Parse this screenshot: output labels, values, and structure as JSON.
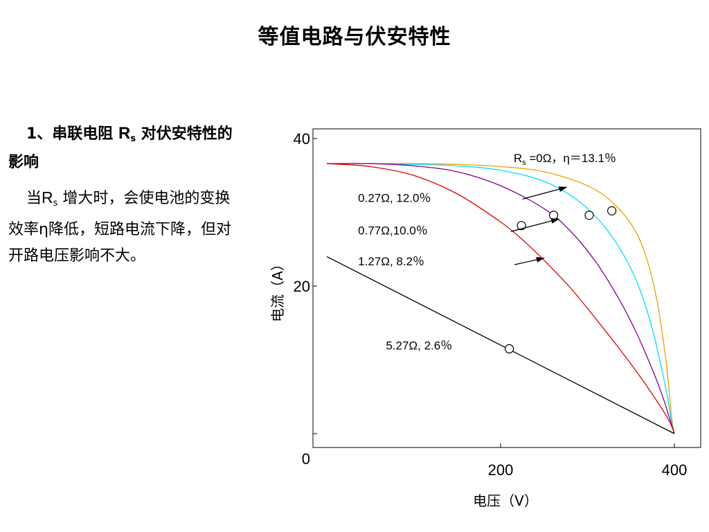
{
  "page": {
    "title": "等值电路与伏安特性"
  },
  "section": {
    "heading_prefix": "1、串联电阻",
    "heading_symbol": "R",
    "heading_sub": "s",
    "heading_suffix": "对伏安特性的影响",
    "body_prefix": "当",
    "body_symbol": "R",
    "body_sub": "s",
    "body_suffix": " 增大时，会使电池的变换效率η降低，短路电流下降，但对开路电压影响不大。"
  },
  "chart_data": {
    "type": "line",
    "xlabel": "电压（V）",
    "ylabel": "电流（A）",
    "xlim": [
      0,
      400
    ],
    "ylim": [
      0,
      40
    ],
    "x_ticks": [
      "200",
      "400"
    ],
    "y_ticks": [
      "0",
      "20",
      "40"
    ],
    "grid": false,
    "series": [
      {
        "label": "Rs =0Ω，η＝13.1％",
        "label_symbol": "R",
        "label_sub": "s",
        "label_rest": " =0Ω，η＝13.1％",
        "color": "#f0a000",
        "x": [
          0,
          50,
          100,
          150,
          200,
          250,
          300,
          330,
          355,
          370,
          380,
          388,
          393,
          397,
          400
        ],
        "y": [
          36.6,
          36.6,
          36.6,
          36.5,
          36.2,
          35.5,
          33.6,
          31.2,
          27.5,
          23.0,
          18.0,
          12.0,
          7.0,
          2.0,
          0
        ],
        "mpp": [
          328,
          30.2
        ]
      },
      {
        "label": "0.27Ω, 12.0％",
        "color": "#00e0ff",
        "x": [
          0,
          50,
          100,
          150,
          200,
          250,
          290,
          320,
          345,
          362,
          375,
          385,
          392,
          397,
          400
        ],
        "y": [
          36.6,
          36.6,
          36.5,
          36.3,
          35.7,
          34.2,
          31.5,
          28.0,
          23.5,
          19.0,
          14.0,
          9.0,
          5.0,
          1.5,
          0
        ],
        "mpp": [
          302,
          29.6
        ],
        "arrow_from": [
          225,
          31.8
        ],
        "arrow_to": [
          276,
          33.4
        ]
      },
      {
        "label": "0.77Ω,10.0％",
        "color": "#800090",
        "x": [
          0,
          50,
          100,
          150,
          200,
          250,
          280,
          310,
          335,
          355,
          370,
          382,
          390,
          396,
          400
        ],
        "y": [
          36.6,
          36.6,
          36.3,
          35.5,
          33.6,
          30.5,
          27.5,
          23.2,
          18.5,
          14.0,
          10.0,
          6.5,
          3.8,
          1.5,
          0
        ],
        "mpp": [
          261,
          29.6
        ],
        "arrow_from": [
          212,
          27.4
        ],
        "arrow_to": [
          267,
          29.1
        ]
      },
      {
        "label": "1.27Ω, 8.2％",
        "color": "#e00000",
        "x": [
          0,
          50,
          100,
          150,
          200,
          225,
          250,
          280,
          310,
          340,
          365,
          385,
          395,
          400
        ],
        "y": [
          36.6,
          36.2,
          35.0,
          32.5,
          28.7,
          26.3,
          23.5,
          19.8,
          15.5,
          11.0,
          7.0,
          3.5,
          1.5,
          0
        ],
        "mpp": [
          224,
          28.2
        ],
        "arrow_from": [
          216,
          22.9
        ],
        "arrow_to": [
          250,
          23.8
        ]
      },
      {
        "label": "5.27Ω, 2.6％",
        "color": "#000000",
        "x": [
          0,
          400
        ],
        "y": [
          24,
          0
        ],
        "mpp": [
          210,
          11.5
        ]
      }
    ],
    "annotations": [
      {
        "series": 0,
        "text_x": 215,
        "text_y": 36.8,
        "anchor": "start"
      },
      {
        "series": 1,
        "text_x": 36,
        "text_y": 31.4,
        "anchor": "start"
      },
      {
        "series": 2,
        "text_x": 36,
        "text_y": 27.0,
        "anchor": "start"
      },
      {
        "series": 3,
        "text_x": 36,
        "text_y": 22.8,
        "anchor": "start"
      },
      {
        "series": 4,
        "text_x": 68,
        "text_y": 11.4,
        "anchor": "start"
      }
    ]
  }
}
